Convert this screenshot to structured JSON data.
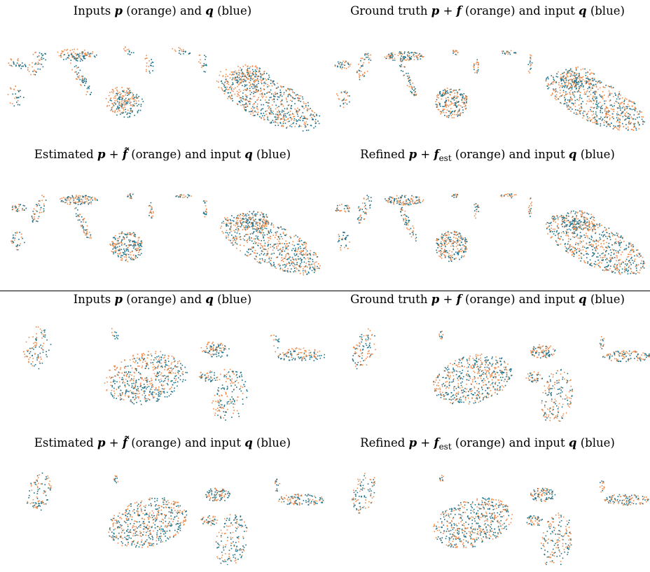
{
  "colors": {
    "p_color": "#ef8a4a",
    "q_color": "#1b6f86"
  },
  "labels": {
    "orange": "(orange)",
    "blue": "(blue)",
    "and": "and",
    "and_input": "and input",
    "inputs": "Inputs",
    "ground_truth": "Ground truth",
    "estimated": "Estimated",
    "refined": "Refined",
    "plus": "+",
    "sub_est": "est"
  },
  "symbols": {
    "p": "p",
    "q": "q",
    "f": "f",
    "f_tilde": "f̃"
  },
  "panel_captions": [
    "Inputs p (orange) and q (blue)",
    "Ground truth p + f (orange) and input q (blue)",
    "Estimated p + f̃ (orange) and input q (blue)",
    "Refined p + f_est (orange) and input q (blue)",
    "Inputs p (orange) and q (blue)",
    "Ground truth p + f (orange) and input q (blue)",
    "Estimated p + f̃ (orange) and input q (blue)",
    "Refined p + f_est (orange) and input q (blue)"
  ]
}
